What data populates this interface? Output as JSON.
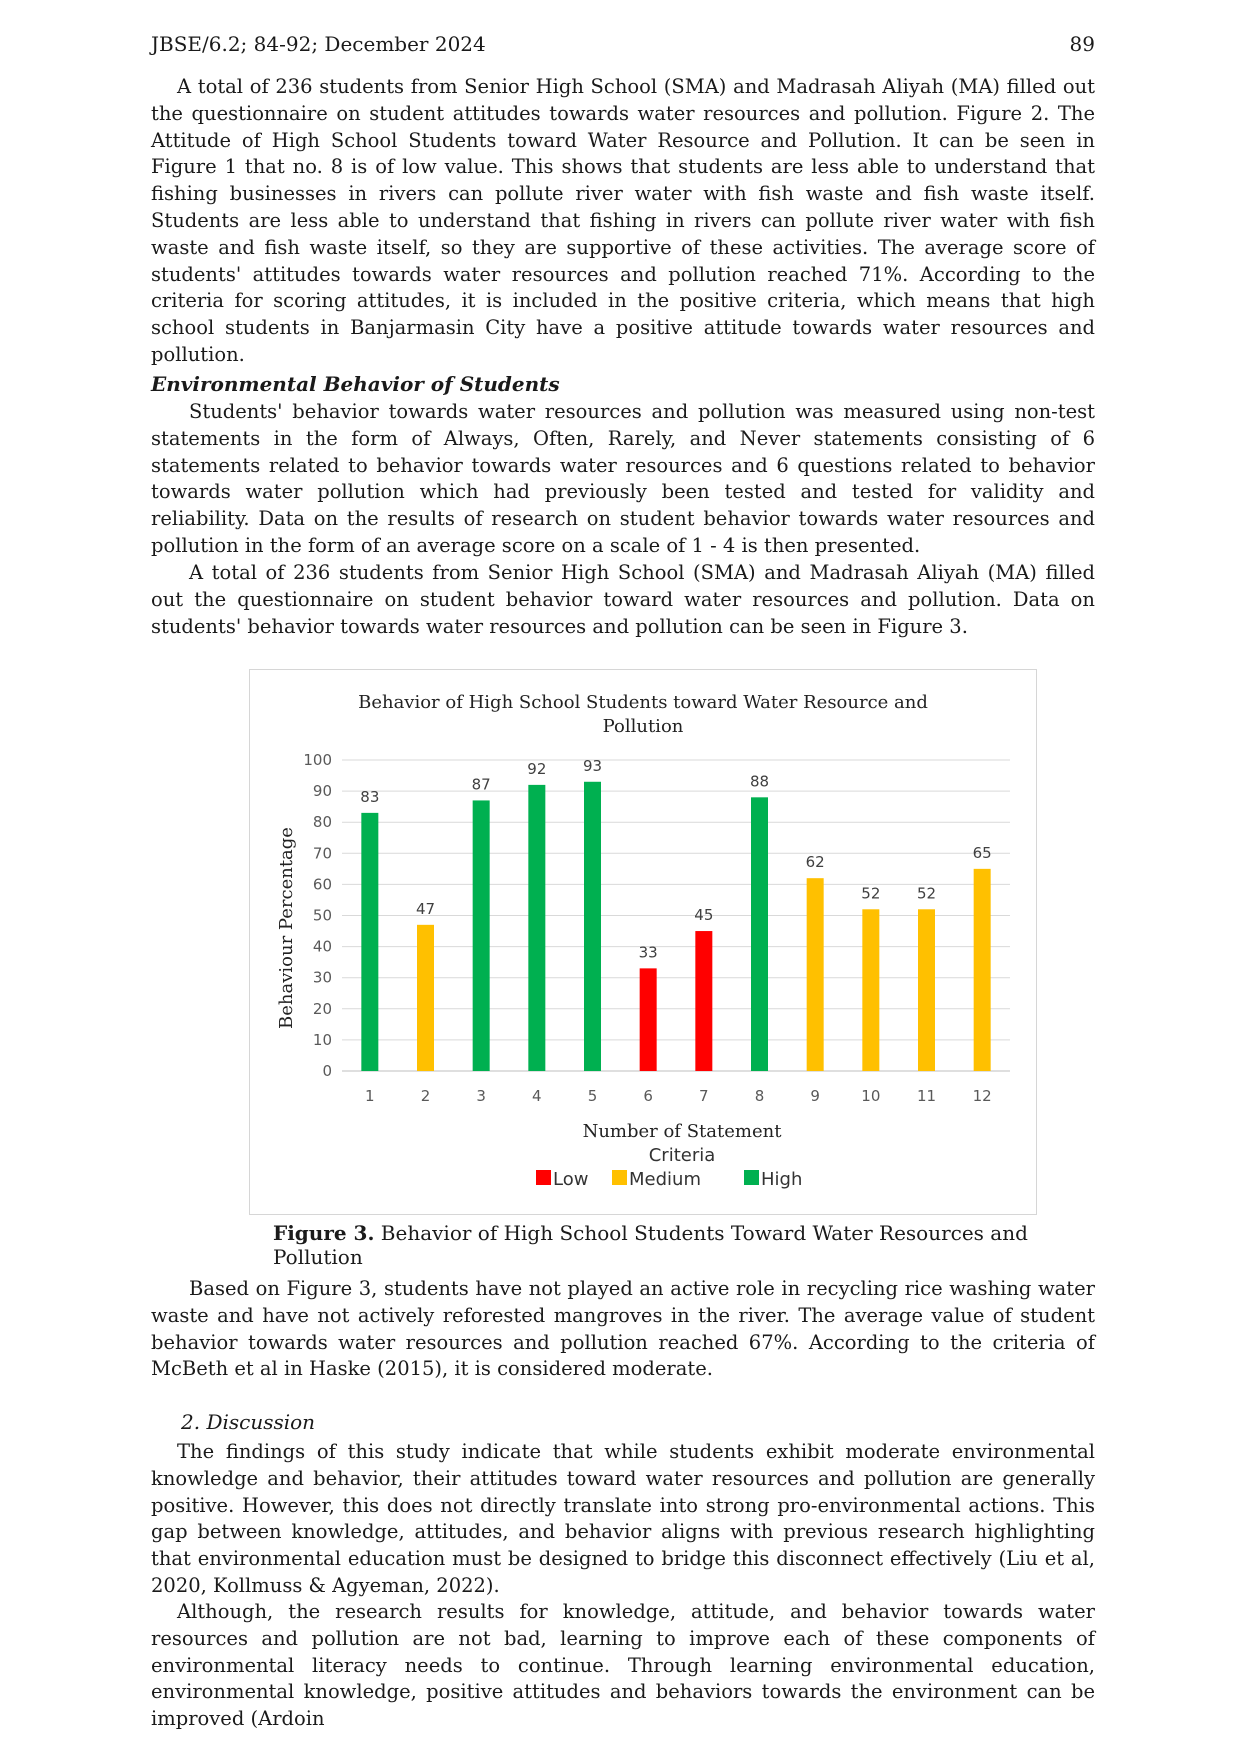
{
  "header": {
    "journal": "JBSE/6.2; 84-92; December 2024",
    "page_number": "89"
  },
  "para1": "A total of 236 students from Senior High School (SMA) and Madrasah Aliyah (MA) filled out the questionnaire on student attitudes towards water resources and pollution. Figure 2. The Attitude of High School Students toward Water Resource and Pollution. It can be seen in Figure 1 that no. 8 is of low value. This shows that students are less able to understand that fishing businesses in rivers can pollute river water with fish waste and fish waste itself. Students are less able to understand that fishing in rivers can pollute river water with fish waste and fish waste itself, so they are supportive of these activities. The average score of students' attitudes towards water resources and pollution reached 71%. According to the criteria for scoring attitudes, it is included in the positive criteria, which means that high school students in Banjarmasin City have a positive attitude towards water resources and pollution.",
  "section_title": "Environmental Behavior of Students",
  "para2": "Students' behavior towards water resources and pollution was measured using non-test statements in the form of Always, Often, Rarely, and Never statements consisting of 6 statements related to behavior towards water resources and 6 questions related to behavior towards water pollution which had previously been tested and tested for validity and reliability. Data on the results of research on student behavior towards water resources and pollution in the form of an average score on a scale of 1 - 4 is then presented.",
  "para3": "A total of 236 students from Senior High School (SMA) and Madrasah Aliyah (MA) filled out the questionnaire on student behavior toward water resources and pollution. Data on students' behavior towards water resources and pollution can be seen in Figure 3.",
  "chart_data": {
    "type": "bar",
    "title_line1": "Behavior of High School Students toward Water Resource and",
    "title_line2": "Pollution",
    "xlabel": "Number of Statement",
    "ylabel": "Behaviour Percentage",
    "categories": [
      "1",
      "2",
      "3",
      "4",
      "5",
      "6",
      "7",
      "8",
      "9",
      "10",
      "11",
      "12"
    ],
    "values": [
      83,
      47,
      87,
      92,
      93,
      33,
      45,
      88,
      62,
      52,
      52,
      65
    ],
    "criteria": [
      "High",
      "Medium",
      "High",
      "High",
      "High",
      "Low",
      "Low",
      "High",
      "Medium",
      "Medium",
      "Medium",
      "Medium"
    ],
    "ylim": [
      0,
      100
    ],
    "yticks": [
      "0",
      "10",
      "20",
      "30",
      "40",
      "50",
      "60",
      "70",
      "80",
      "90",
      "100"
    ],
    "grid": true,
    "legend_title": "Criteria",
    "legend": [
      {
        "name": "Low",
        "color": "#ff0000"
      },
      {
        "name": "Medium",
        "color": "#ffc000"
      },
      {
        "name": "High",
        "color": "#00b050"
      }
    ],
    "legend_placement": "bottom"
  },
  "figure_caption": {
    "label": "Figure 3.",
    "text": " Behavior of High School Students Toward Water Resources and Pollution"
  },
  "para4": "Based on Figure 3, students have not played an active role in recycling rice washing water waste and have not actively reforested mangroves in the river. The average value of student behavior towards water resources and pollution reached 67%. According to the criteria of McBeth et al in Haske (2015), it is considered moderate.",
  "discussion_heading": "2.  Discussion",
  "para5": "The findings of this study indicate that while students exhibit moderate environmental knowledge and behavior, their attitudes toward water resources and pollution are generally positive. However, this does not directly translate into strong pro-environmental actions. This gap between knowledge, attitudes, and behavior aligns with previous research highlighting that environmental education must be designed to bridge this disconnect effectively (Liu et al, 2020, Kollmuss & Agyeman, 2022).",
  "para6": "Although, the research results for knowledge, attitude, and behavior towards water resources and pollution are not bad, learning to improve each of these components of environmental literacy needs to continue. Through learning environmental education, environmental knowledge, positive attitudes and behaviors towards the environment can be improved (Ardoin"
}
